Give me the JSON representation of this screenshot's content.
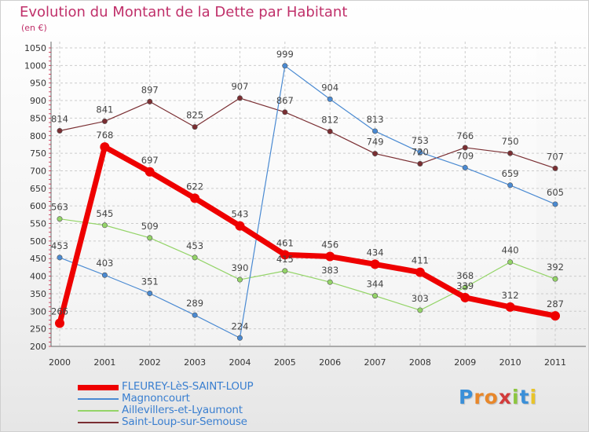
{
  "title": "Evolution du Montant de la Dette par Habitant",
  "subtitle": "(en €)",
  "logo": {
    "letters": [
      {
        "ch": "P",
        "color": "#3a8fd8"
      },
      {
        "ch": "r",
        "color": "#e8872a"
      },
      {
        "ch": "o",
        "color": "#e8872a"
      },
      {
        "ch": "x",
        "color": "#d23b3b"
      },
      {
        "ch": "i",
        "color": "#8cc63f"
      },
      {
        "ch": "t",
        "color": "#3a8fd8"
      },
      {
        "ch": "i",
        "color": "#e8c42a"
      }
    ]
  },
  "chart_data": {
    "type": "line",
    "x": [
      "2000",
      "2001",
      "2002",
      "2003",
      "2004",
      "2005",
      "2006",
      "2007",
      "2008",
      "2009",
      "2010",
      "2011"
    ],
    "ylim": [
      200,
      1050
    ],
    "yticks": [
      200,
      250,
      300,
      350,
      400,
      450,
      500,
      550,
      600,
      650,
      700,
      750,
      800,
      850,
      900,
      950,
      1000,
      1050
    ],
    "grid": true,
    "legend_position": "bottom-left",
    "series": [
      {
        "name": "Saint-Loup-sur-Semouse",
        "color": "#7a2e32",
        "highlight": false,
        "values": [
          814,
          841,
          897,
          825,
          907,
          867,
          812,
          749,
          720,
          766,
          750,
          707
        ]
      },
      {
        "name": "Aillevillers-et-Lyaumont",
        "color": "#94d468",
        "highlight": false,
        "values": [
          563,
          545,
          509,
          453,
          390,
          415,
          383,
          344,
          303,
          368,
          440,
          392
        ]
      },
      {
        "name": "Magnoncourt",
        "color": "#4a8ad2",
        "highlight": false,
        "values": [
          453,
          403,
          351,
          289,
          224,
          999,
          904,
          813,
          753,
          709,
          659,
          605
        ]
      },
      {
        "name": "FLEUREY-LèS-SAINT-LOUP",
        "color": "#ee0000",
        "highlight": true,
        "values": [
          266,
          768,
          697,
          622,
          543,
          461,
          456,
          434,
          411,
          339,
          312,
          287
        ]
      }
    ]
  }
}
